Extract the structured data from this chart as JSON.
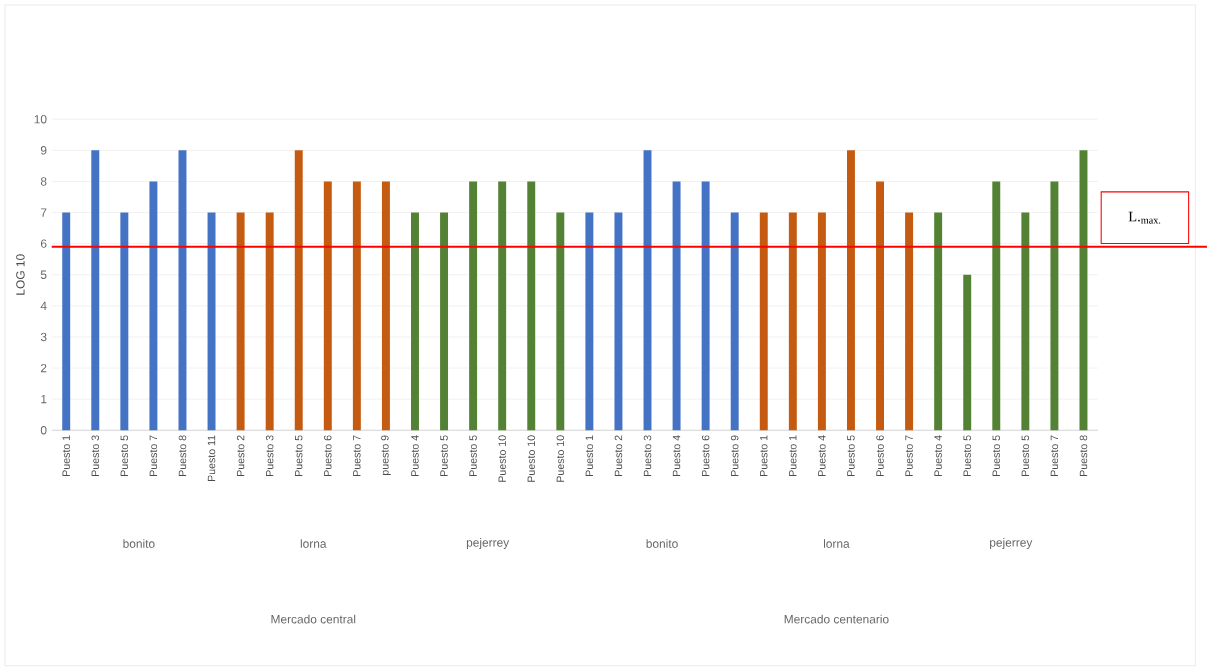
{
  "chart_data": {
    "type": "bar",
    "ylabel": "LOG 10",
    "categories": [
      "Puesto 1",
      "Puesto 3",
      "Puesto 5",
      "Puesto 7",
      "Puesto 8",
      "Puesto 11",
      "Puesto 2",
      "Puesto 3",
      "Puesto 5",
      "Puesto 6",
      "Puesto 7",
      "puesto 9",
      "Puesto 4",
      "Puesto 5",
      "Puesto 5",
      "Puesto 10",
      "Puesto 10",
      "Puesto 10",
      "Puesto 1",
      "Puesto 2",
      "Puesto 3",
      "Puesto 4",
      "Puesto 6",
      "Puesto 9",
      "Puesto 1",
      "Puesto 1",
      "Puesto 4",
      "Puesto 5",
      "Puesto 6",
      "Puesto 7",
      "Puesto 4",
      "Puesto 5",
      "Puesto 5",
      "Puesto 5",
      "Puesto 7",
      "Puesto 8"
    ],
    "values": [
      7,
      9,
      7,
      8,
      9,
      7,
      7,
      7,
      9,
      8,
      8,
      8,
      7,
      7,
      8,
      8,
      8,
      7,
      7,
      7,
      9,
      8,
      8,
      7,
      7,
      7,
      7,
      9,
      8,
      7,
      7,
      5,
      8,
      7,
      8,
      9
    ],
    "colors": [
      "#4472c4",
      "#4472c4",
      "#4472c4",
      "#4472c4",
      "#4472c4",
      "#4472c4",
      "#c55a11",
      "#c55a11",
      "#c55a11",
      "#c55a11",
      "#c55a11",
      "#c55a11",
      "#548235",
      "#548235",
      "#548235",
      "#548235",
      "#548235",
      "#548235",
      "#4472c4",
      "#4472c4",
      "#4472c4",
      "#4472c4",
      "#4472c4",
      "#4472c4",
      "#c55a11",
      "#c55a11",
      "#c55a11",
      "#c55a11",
      "#c55a11",
      "#c55a11",
      "#548235",
      "#548235",
      "#548235",
      "#548235",
      "#548235",
      "#548235"
    ],
    "ylim": [
      0,
      10
    ],
    "yticks": [
      0,
      1,
      2,
      3,
      4,
      5,
      6,
      7,
      8,
      9,
      10
    ],
    "grid": "y",
    "ref_lines": [
      {
        "axis": "y",
        "value": 5.9,
        "label": "L.$_{max.}$",
        "color": "#ff0000"
      }
    ],
    "annotations": [
      "bonito",
      "lorna",
      "pejerrey",
      "bonito",
      "lorna",
      "pejerrey",
      "Mercado central",
      "Mercado centenario"
    ]
  }
}
